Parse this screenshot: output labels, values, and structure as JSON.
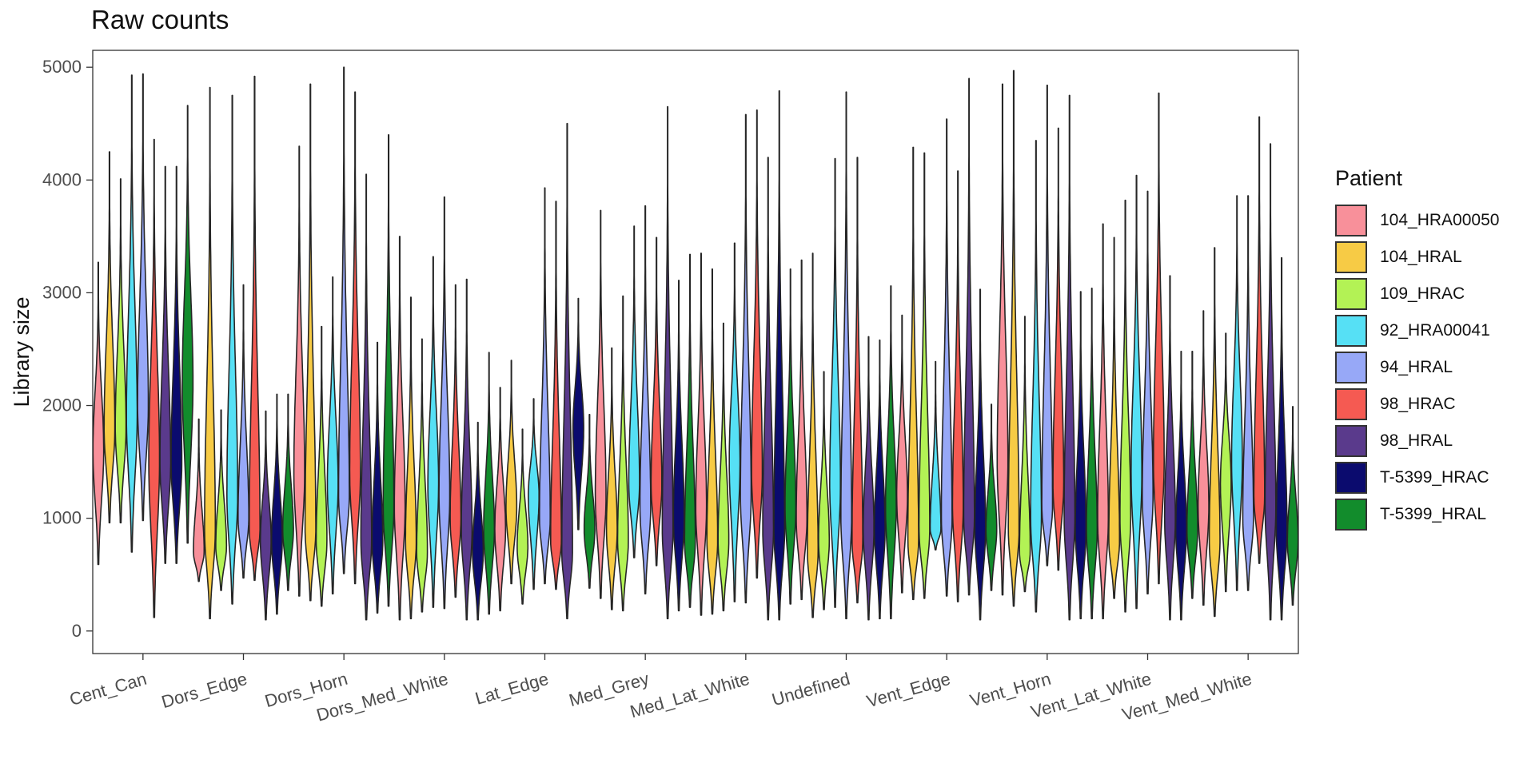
{
  "chart_data": {
    "type": "violin",
    "title": "Raw counts",
    "xlabel": "",
    "ylabel": "Library size",
    "ylim": [
      -200,
      5150
    ],
    "yticks": [
      0,
      1000,
      2000,
      3000,
      4000,
      5000
    ],
    "grid": false,
    "legend_title": "Patient",
    "legend_position": "right",
    "categories": [
      "Cent_Can",
      "Dors_Edge",
      "Dors_Horn",
      "Dors_Med_White",
      "Lat_Edge",
      "Med_Grey",
      "Med_Lat_White",
      "Undefined",
      "Vent_Edge",
      "Vent_Horn",
      "Vent_Lat_White",
      "Vent_Med_White"
    ],
    "series": [
      {
        "name": "104_HRA00050",
        "color": "#F8909A",
        "ranges": [
          [
            590,
            3270
          ],
          [
            440,
            1880
          ],
          [
            310,
            4300
          ],
          [
            100,
            3500
          ],
          [
            180,
            2160
          ],
          [
            290,
            3730
          ],
          [
            140,
            3350
          ],
          [
            280,
            3290
          ],
          [
            340,
            2800
          ],
          [
            320,
            4850
          ],
          [
            110,
            3610
          ],
          [
            230,
            2840
          ]
        ],
        "medians": [
          1600,
          700,
          1400,
          1100,
          900,
          1200,
          1100,
          1000,
          1200,
          1500,
          1000,
          1100
        ]
      },
      {
        "name": "104_HRAL",
        "color": "#F7CB45",
        "ranges": [
          [
            960,
            4250
          ],
          [
            110,
            4820
          ],
          [
            270,
            4850
          ],
          [
            110,
            2960
          ],
          [
            420,
            2400
          ],
          [
            190,
            2510
          ],
          [
            150,
            3210
          ],
          [
            120,
            3350
          ],
          [
            280,
            4290
          ],
          [
            220,
            4970
          ],
          [
            290,
            3490
          ],
          [
            130,
            3400
          ]
        ],
        "medians": [
          1800,
          900,
          900,
          800,
          1100,
          900,
          800,
          700,
          800,
          900,
          800,
          800
        ]
      },
      {
        "name": "109_HRAC",
        "color": "#B3F255",
        "ranges": [
          [
            960,
            4010
          ],
          [
            360,
            1960
          ],
          [
            220,
            2700
          ],
          [
            170,
            2590
          ],
          [
            240,
            1790
          ],
          [
            180,
            2970
          ],
          [
            180,
            2730
          ],
          [
            190,
            2300
          ],
          [
            290,
            4240
          ],
          [
            350,
            2790
          ],
          [
            170,
            3820
          ],
          [
            350,
            2640
          ]
        ],
        "medians": [
          1800,
          750,
          800,
          700,
          750,
          800,
          800,
          800,
          900,
          700,
          1000,
          1300
        ]
      },
      {
        "name": "92_HRA00041",
        "color": "#56E0F5",
        "ranges": [
          [
            700,
            4930
          ],
          [
            240,
            4750
          ],
          [
            330,
            3140
          ],
          [
            210,
            3320
          ],
          [
            370,
            2060
          ],
          [
            650,
            3590
          ],
          [
            260,
            3440
          ],
          [
            210,
            4190
          ],
          [
            720,
            2390
          ],
          [
            170,
            4350
          ],
          [
            200,
            4040
          ],
          [
            360,
            3860
          ]
        ],
        "medians": [
          1900,
          1200,
          1300,
          1300,
          1200,
          1300,
          1500,
          1300,
          900,
          1000,
          1400,
          1500
        ]
      },
      {
        "name": "94_HRAL",
        "color": "#97A8F7",
        "ranges": [
          [
            980,
            4940
          ],
          [
            470,
            3070
          ],
          [
            510,
            5000
          ],
          [
            200,
            3850
          ],
          [
            420,
            3930
          ],
          [
            330,
            3770
          ],
          [
            250,
            4580
          ],
          [
            110,
            4780
          ],
          [
            310,
            4540
          ],
          [
            580,
            4840
          ],
          [
            330,
            3900
          ],
          [
            360,
            3860
          ]
        ],
        "medians": [
          2000,
          1000,
          1200,
          1200,
          1000,
          1100,
          1200,
          1000,
          1000,
          1100,
          1200,
          1000
        ]
      },
      {
        "name": "98_HRAC",
        "color": "#F55A52",
        "ranges": [
          [
            120,
            4360
          ],
          [
            450,
            4920
          ],
          [
            420,
            4780
          ],
          [
            300,
            3070
          ],
          [
            370,
            3810
          ],
          [
            580,
            3490
          ],
          [
            470,
            4620
          ],
          [
            250,
            4200
          ],
          [
            260,
            4080
          ],
          [
            540,
            4460
          ],
          [
            420,
            4770
          ],
          [
            600,
            4560
          ]
        ],
        "medians": [
          1500,
          900,
          1400,
          1000,
          800,
          1300,
          1400,
          800,
          1100,
          1300,
          1500,
          1200
        ]
      },
      {
        "name": "98_HRAL",
        "color": "#5A3A8C",
        "ranges": [
          [
            600,
            4120
          ],
          [
            100,
            1950
          ],
          [
            100,
            4050
          ],
          [
            100,
            3120
          ],
          [
            110,
            4500
          ],
          [
            110,
            4650
          ],
          [
            100,
            4200
          ],
          [
            100,
            2610
          ],
          [
            320,
            4900
          ],
          [
            100,
            4750
          ],
          [
            100,
            3150
          ],
          [
            100,
            4320
          ]
        ],
        "medians": [
          1500,
          800,
          800,
          900,
          700,
          900,
          900,
          900,
          1000,
          1000,
          1000,
          1100
        ]
      },
      {
        "name": "T-5399_HRAC",
        "color": "#0B0B6E",
        "ranges": [
          [
            600,
            4120
          ],
          [
            150,
            2100
          ],
          [
            160,
            2560
          ],
          [
            100,
            1850
          ],
          [
            900,
            2950
          ],
          [
            180,
            3110
          ],
          [
            100,
            4790
          ],
          [
            110,
            2580
          ],
          [
            100,
            3030
          ],
          [
            110,
            3010
          ],
          [
            100,
            2480
          ],
          [
            100,
            3310
          ]
        ],
        "medians": [
          1500,
          800,
          800,
          700,
          1800,
          1000,
          900,
          900,
          900,
          900,
          900,
          900
        ]
      },
      {
        "name": "T-5399_HRAL",
        "color": "#128C2C",
        "ranges": [
          [
            780,
            4660
          ],
          [
            360,
            2100
          ],
          [
            220,
            4400
          ],
          [
            150,
            2470
          ],
          [
            380,
            1920
          ],
          [
            210,
            3340
          ],
          [
            240,
            3210
          ],
          [
            110,
            3060
          ],
          [
            360,
            2010
          ],
          [
            110,
            3040
          ],
          [
            290,
            2480
          ],
          [
            230,
            1990
          ]
        ],
        "medians": [
          2200,
          900,
          1100,
          900,
          900,
          800,
          1100,
          1100,
          900,
          900,
          900,
          800
        ]
      }
    ]
  }
}
